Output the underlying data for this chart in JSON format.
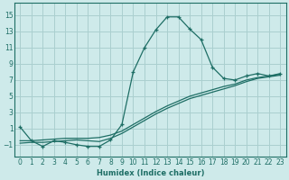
{
  "xlabel": "Humidex (Indice chaleur)",
  "xlim": [
    -0.5,
    23.5
  ],
  "ylim": [
    -2.5,
    16.5
  ],
  "xticks": [
    0,
    1,
    2,
    3,
    4,
    5,
    6,
    7,
    8,
    9,
    10,
    11,
    12,
    13,
    14,
    15,
    16,
    17,
    18,
    19,
    20,
    21,
    22,
    23
  ],
  "yticks": [
    -1,
    1,
    3,
    5,
    7,
    9,
    11,
    13,
    15
  ],
  "bg_color": "#ceeaea",
  "grid_color": "#aacfcf",
  "line_color": "#1e6e65",
  "curve1_x": [
    0,
    1,
    2,
    3,
    4,
    5,
    6,
    7,
    8,
    9,
    10,
    11,
    12,
    13,
    14,
    15,
    16,
    17,
    18,
    19,
    20,
    21,
    22,
    23
  ],
  "curve1_y": [
    1.2,
    -0.5,
    -1.2,
    -0.5,
    -0.7,
    -1.0,
    -1.2,
    -1.2,
    -0.4,
    1.5,
    8.0,
    11.0,
    13.2,
    14.8,
    14.8,
    13.3,
    12.0,
    8.6,
    7.2,
    7.0,
    7.5,
    7.8,
    7.5,
    7.8
  ],
  "curve2_x": [
    0,
    1,
    2,
    3,
    4,
    5,
    6,
    7,
    8,
    9,
    10,
    11,
    12,
    13,
    14,
    15,
    16,
    17,
    18,
    19,
    20,
    21,
    22,
    23
  ],
  "curve2_y": [
    -0.8,
    -0.7,
    -0.7,
    -0.6,
    -0.5,
    -0.4,
    -0.5,
    -0.6,
    -0.2,
    0.4,
    1.2,
    2.0,
    2.8,
    3.5,
    4.1,
    4.7,
    5.1,
    5.5,
    5.9,
    6.3,
    6.8,
    7.2,
    7.4,
    7.6
  ],
  "curve3_x": [
    0,
    1,
    2,
    3,
    4,
    5,
    6,
    7,
    8,
    9,
    10,
    11,
    12,
    13,
    14,
    15,
    16,
    17,
    18,
    19,
    20,
    21,
    22,
    23
  ],
  "curve3_y": [
    -0.5,
    -0.5,
    -0.4,
    -0.3,
    -0.2,
    -0.2,
    -0.2,
    -0.1,
    0.2,
    0.7,
    1.5,
    2.3,
    3.1,
    3.8,
    4.4,
    5.0,
    5.4,
    5.8,
    6.2,
    6.5,
    7.0,
    7.3,
    7.5,
    7.7
  ]
}
